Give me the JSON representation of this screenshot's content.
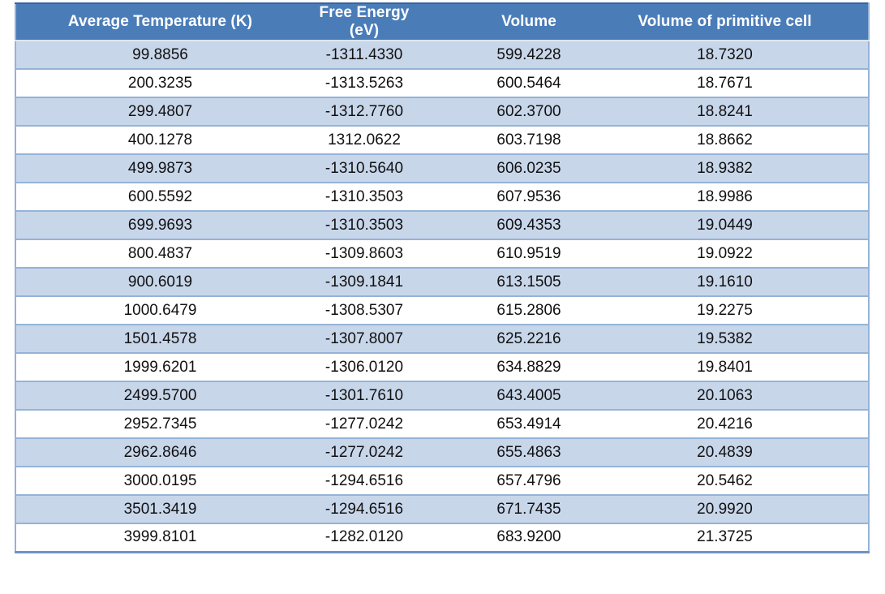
{
  "table": {
    "columns": [
      "Average Temperature (K)",
      "Free Energy (eV)",
      "Volume",
      "Volume of primitive cell"
    ],
    "rows": [
      [
        "99.8856",
        "-1311.4330",
        "599.4228",
        "18.7320"
      ],
      [
        "200.3235",
        "-1313.5263",
        "600.5464",
        "18.7671"
      ],
      [
        "299.4807",
        "-1312.7760",
        "602.3700",
        "18.8241"
      ],
      [
        "400.1278",
        "1312.0622",
        "603.7198",
        "18.8662"
      ],
      [
        "499.9873",
        "-1310.5640",
        "606.0235",
        "18.9382"
      ],
      [
        "600.5592",
        "-1310.3503",
        "607.9536",
        "18.9986"
      ],
      [
        "699.9693",
        "-1310.3503",
        "609.4353",
        "19.0449"
      ],
      [
        "800.4837",
        "-1309.8603",
        "610.9519",
        "19.0922"
      ],
      [
        "900.6019",
        "-1309.1841",
        "613.1505",
        "19.1610"
      ],
      [
        "1000.6479",
        "-1308.5307",
        "615.2806",
        "19.2275"
      ],
      [
        "1501.4578",
        "-1307.8007",
        "625.2216",
        "19.5382"
      ],
      [
        "1999.6201",
        "-1306.0120",
        "634.8829",
        "19.8401"
      ],
      [
        "2499.5700",
        "-1301.7610",
        "643.4005",
        "20.1063"
      ],
      [
        "2952.7345",
        "-1277.0242",
        "653.4914",
        "20.4216"
      ],
      [
        "2962.8646",
        "-1277.0242",
        "655.4863",
        "20.4839"
      ],
      [
        "3000.0195",
        "-1294.6516",
        "657.4796",
        "20.5462"
      ],
      [
        "3501.3419",
        "-1294.6516",
        "671.7435",
        "20.9920"
      ],
      [
        "3999.8101",
        "-1282.0120",
        "683.9200",
        "21.3725"
      ]
    ]
  },
  "colors": {
    "header_bg": "#4a7cb8",
    "header_text": "#ffffff",
    "row_alt_bg": "#c8d6ea",
    "row_bg": "#ffffff",
    "grid_line": "#95b3d7",
    "header_underline": "#dbe5f1",
    "outer_border": "#95b3d7",
    "top_border": "#3c6398",
    "bottom_border": "#6f92c8",
    "cell_text": "#111111"
  }
}
